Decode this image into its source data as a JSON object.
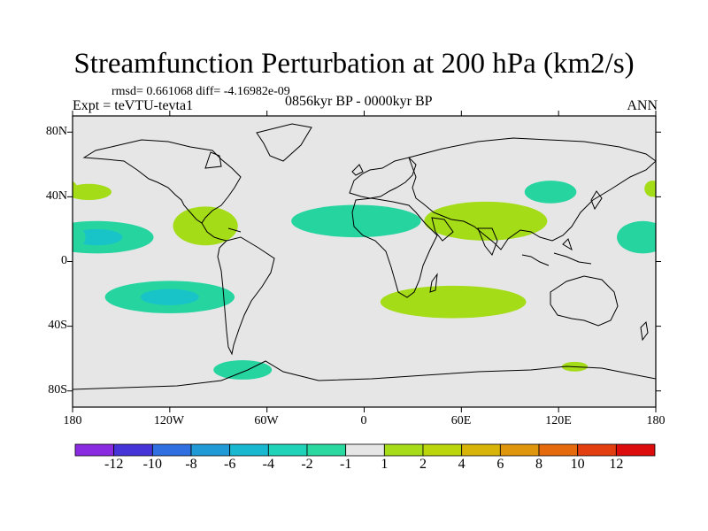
{
  "title": "Streamfunction Perturbation at 200 hPa (km2/s)",
  "stats": "rmsd= 0.661068 diff= -4.16982e-09",
  "experiment": "Expt = teVTU-tevta1",
  "period": "0856kyr BP - 0000kyr BP",
  "season": "ANN",
  "lat_ticks": [
    "80N",
    "40N",
    "0",
    "40S",
    "80S"
  ],
  "lon_ticks": [
    "180",
    "120W",
    "60W",
    "0",
    "60E",
    "120E",
    "180"
  ],
  "colorbar": {
    "labels": [
      "-12",
      "-10",
      "-8",
      "-6",
      "-4",
      "-2",
      "-1",
      "1",
      "2",
      "4",
      "6",
      "8",
      "10",
      "12"
    ],
    "colors": [
      "#8a2be2",
      "#4634d8",
      "#2f6fe0",
      "#1f9ad6",
      "#18b8d0",
      "#1ed3b8",
      "#2ad9a0",
      "#e6e6e6",
      "#a6dc18",
      "#bcd60c",
      "#d9b408",
      "#e0960c",
      "#e46a0c",
      "#e23e10",
      "#dd0c0c"
    ]
  },
  "colors": {
    "background_map": "#e6e6e6",
    "negative_light": "#26d4a0",
    "negative_mid": "#18c4c8",
    "positive_light": "#a4dc18"
  },
  "chart_data": {
    "type": "contour-map",
    "variable": "Streamfunction Perturbation",
    "level": "200 hPa",
    "units": "km2/s",
    "lon_range": [
      -180,
      180
    ],
    "lat_range": [
      -90,
      90
    ],
    "anomalies": [
      {
        "sign": "negative",
        "center_lon": -165,
        "center_lat": 15,
        "lon_extent": 35,
        "lat_extent": 10,
        "max_level": "-4"
      },
      {
        "sign": "negative",
        "center_lon": -120,
        "center_lat": -22,
        "lon_extent": 40,
        "lat_extent": 10,
        "max_level": "-2"
      },
      {
        "sign": "negative",
        "center_lon": -75,
        "center_lat": -67,
        "lon_extent": 18,
        "lat_extent": 6,
        "max_level": "-1"
      },
      {
        "sign": "negative",
        "center_lon": -5,
        "center_lat": 25,
        "lon_extent": 40,
        "lat_extent": 10,
        "max_level": "-1"
      },
      {
        "sign": "negative",
        "center_lon": 115,
        "center_lat": 43,
        "lon_extent": 16,
        "lat_extent": 7,
        "max_level": "-1"
      },
      {
        "sign": "negative",
        "center_lon": 172,
        "center_lat": 15,
        "lon_extent": 16,
        "lat_extent": 10,
        "max_level": "-1"
      },
      {
        "sign": "positive",
        "center_lon": -170,
        "center_lat": 43,
        "lon_extent": 14,
        "lat_extent": 5,
        "max_level": "1"
      },
      {
        "sign": "positive",
        "center_lon": -98,
        "center_lat": 22,
        "lon_extent": 20,
        "lat_extent": 12,
        "max_level": "1"
      },
      {
        "sign": "positive",
        "center_lon": 75,
        "center_lat": 25,
        "lon_extent": 38,
        "lat_extent": 12,
        "max_level": "1"
      },
      {
        "sign": "positive",
        "center_lon": 55,
        "center_lat": -25,
        "lon_extent": 45,
        "lat_extent": 10,
        "max_level": "1"
      },
      {
        "sign": "positive",
        "center_lon": 178,
        "center_lat": 45,
        "lon_extent": 5,
        "lat_extent": 5,
        "max_level": "1"
      },
      {
        "sign": "positive",
        "center_lon": 130,
        "center_lat": -65,
        "lon_extent": 8,
        "lat_extent": 3,
        "max_level": "1"
      }
    ]
  }
}
